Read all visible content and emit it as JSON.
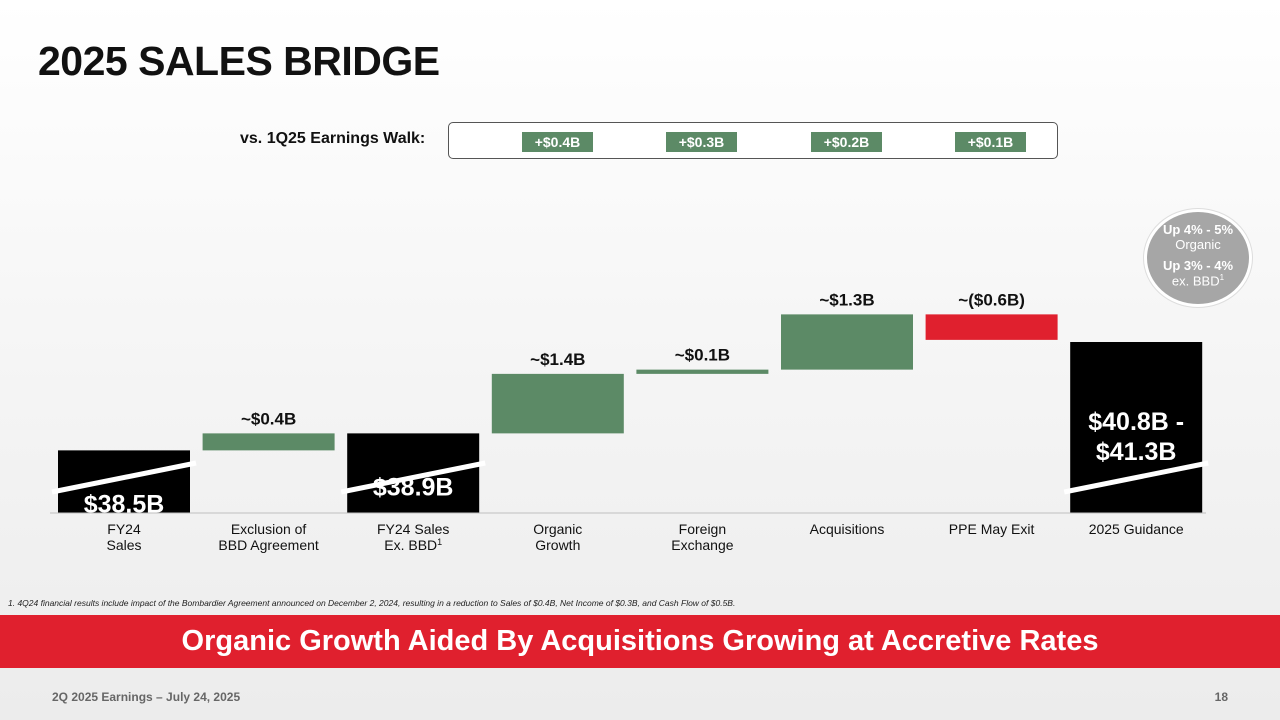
{
  "page": {
    "title": "2025 SALES BRIDGE",
    "walk_label": "vs. 1Q25 Earnings Walk:",
    "walk_items": [
      "+$0.4B",
      "+$0.3B",
      "+$0.2B",
      "+$0.1B"
    ],
    "circle": {
      "line1": "Up 4% - 5%",
      "line2": "Organic",
      "line3": "Up 3% - 4%",
      "line4": "ex. BBD",
      "line4_sup": "1"
    },
    "footnote": "1. 4Q24 financial results include impact of the Bombardier Agreement announced on December 2, 2024, resulting in a reduction to Sales of $0.4B, Net Income of $0.3B, and Cash Flow of $0.5B.",
    "banner": "Organic Growth Aided By Acquisitions Growing at Accretive Rates",
    "footer_left": "2Q 2025 Earnings – July 24, 2025",
    "page_number": "18"
  },
  "colors": {
    "total": "#000000",
    "increase": "#5c8a66",
    "decrease": "#e0202e",
    "banner": "#e0202e"
  },
  "chart_data": {
    "type": "bar",
    "subtype": "waterfall",
    "axis_break": true,
    "categories": [
      [
        "FY24",
        "Sales"
      ],
      [
        "Exclusion of",
        "BBD Agreement"
      ],
      [
        "FY24 Sales",
        "Ex. BBD"
      ],
      [
        "Organic",
        "Growth"
      ],
      [
        "Foreign",
        "Exchange"
      ],
      [
        "Acquisitions"
      ],
      [
        "PPE May Exit"
      ],
      [
        "2025 Guidance"
      ]
    ],
    "category_superscripts": [
      "",
      "",
      "1",
      "",
      "",
      "",
      "",
      ""
    ],
    "bars": [
      {
        "kind": "total",
        "value": 38.5,
        "label": "$38.5B"
      },
      {
        "kind": "increase",
        "value": 0.4,
        "label": "~$0.4B"
      },
      {
        "kind": "total",
        "value": 38.9,
        "label": "$38.9B"
      },
      {
        "kind": "increase",
        "value": 1.4,
        "label": "~$1.4B"
      },
      {
        "kind": "increase",
        "value": 0.1,
        "label": "~$0.1B"
      },
      {
        "kind": "increase",
        "value": 1.3,
        "label": "~$1.3B"
      },
      {
        "kind": "decrease",
        "value": -0.6,
        "label": "~($0.6B)"
      },
      {
        "kind": "total",
        "value": 41.05,
        "range": [
          40.8,
          41.3
        ],
        "label_lines": [
          "$40.8B -",
          "$41.3B"
        ]
      }
    ]
  }
}
